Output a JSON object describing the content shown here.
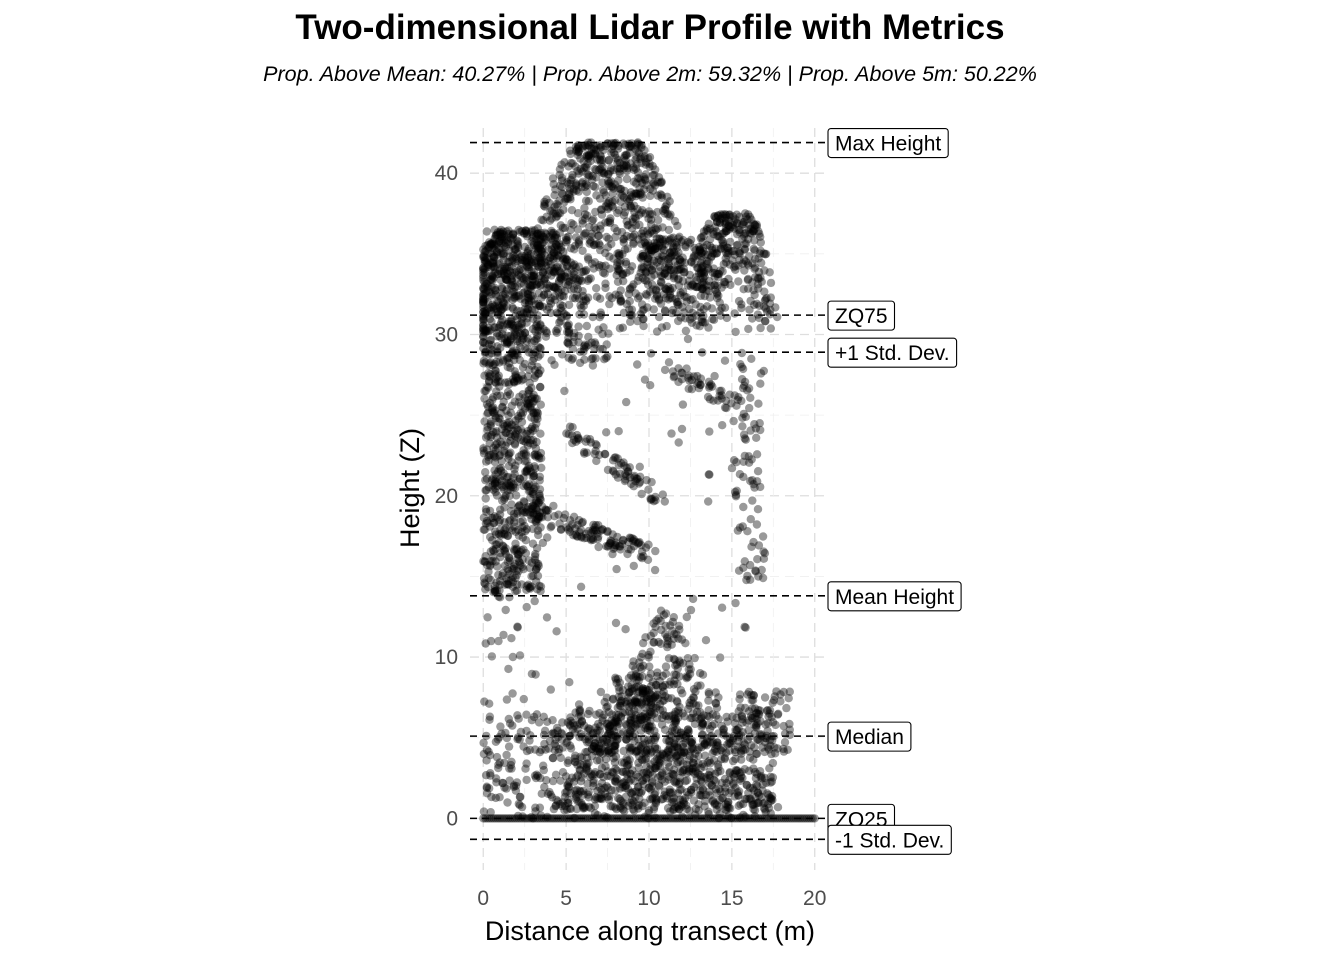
{
  "chart_data": {
    "type": "scatter",
    "title": "Two-dimensional Lidar Profile with Metrics",
    "subtitle": "Prop. Above Mean: 40.27% | Prop. Above 2m: 59.32% | Prop. Above 5m: 50.22%",
    "xlabel": "Distance along transect (m)",
    "ylabel": "Height (Z)",
    "xlim": [
      -0.8,
      20.8
    ],
    "ylim": [
      -3.2,
      42.8
    ],
    "x_ticks": [
      0,
      5,
      10,
      15,
      20
    ],
    "y_ticks": [
      0,
      10,
      20,
      30,
      40
    ],
    "grid": true,
    "point_color": "#000000",
    "point_opacity": 0.4,
    "reference_lines": [
      {
        "label": "Max Height",
        "y": 41.9
      },
      {
        "label": "ZQ75",
        "y": 31.2
      },
      {
        "label": "+1 Std. Dev.",
        "y": 28.9
      },
      {
        "label": "Mean Height",
        "y": 13.8
      },
      {
        "label": "Median",
        "y": 5.1
      },
      {
        "label": "ZQ25",
        "y": 0.0
      },
      {
        "label": "-1 Std. Dev.",
        "y": -1.3
      }
    ],
    "clusters": [
      {
        "shape": "ground",
        "x0": 0,
        "x1": 20,
        "n": 160
      },
      {
        "shape": "band",
        "x0": 0,
        "x1": 17.5,
        "y0": 0,
        "y1": 6.5,
        "n": 520
      },
      {
        "shape": "triangle",
        "cx": 11,
        "top": 13.5,
        "half": 7,
        "bottom": 0.5,
        "n": 640
      },
      {
        "shape": "triangle",
        "cx": 8.5,
        "top": 9.5,
        "half": 5.5,
        "bottom": 4,
        "n": 160
      },
      {
        "shape": "band",
        "x0": 15,
        "x1": 18.5,
        "y0": 4,
        "y1": 8,
        "n": 90
      },
      {
        "shape": "band",
        "x0": 0,
        "x1": 3.5,
        "y0": 14,
        "y1": 36.5,
        "n": 900
      },
      {
        "shape": "crown",
        "cx": 7.5,
        "top": 41.9,
        "half": 5,
        "bottom": 30,
        "n": 700
      },
      {
        "shape": "crown",
        "cx": 2.5,
        "top": 36.5,
        "half": 4,
        "bottom": 29,
        "n": 350
      },
      {
        "shape": "crown",
        "cx": 15,
        "top": 37.5,
        "half": 2.8,
        "bottom": 30,
        "n": 280
      },
      {
        "shape": "crown",
        "cx": 11.5,
        "top": 36,
        "half": 3,
        "bottom": 30,
        "n": 200
      },
      {
        "shape": "arc",
        "x0": 3,
        "x1": 10,
        "y0": 19,
        "y1": 16.5,
        "n": 110
      },
      {
        "shape": "arc",
        "x0": 5,
        "x1": 10.5,
        "y0": 24,
        "y1": 20,
        "n": 70
      },
      {
        "shape": "arc",
        "x0": 11,
        "x1": 15.5,
        "y0": 28,
        "y1": 25.5,
        "n": 45
      },
      {
        "shape": "arc",
        "x0": 4,
        "x1": 7.5,
        "y0": 29,
        "y1": 29,
        "n": 30
      },
      {
        "shape": "band",
        "x0": 15,
        "x1": 17,
        "y0": 14.5,
        "y1": 29,
        "n": 80
      },
      {
        "shape": "band",
        "x0": 0,
        "x1": 3.8,
        "y0": 7,
        "y1": 14,
        "n": 25
      },
      {
        "shape": "band",
        "x0": 3.5,
        "x1": 16,
        "y0": 6,
        "y1": 30,
        "n": 70
      }
    ]
  }
}
